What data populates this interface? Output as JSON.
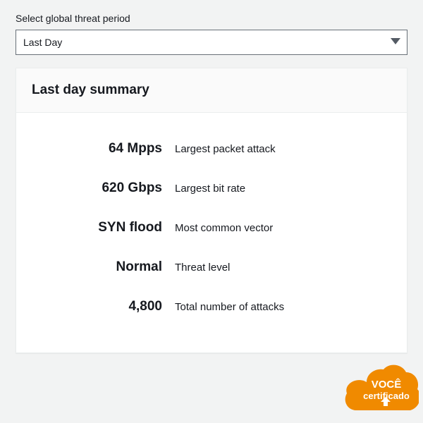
{
  "selector": {
    "label": "Select global threat period",
    "value": "Last Day",
    "caret_color": "#545b64"
  },
  "card": {
    "title": "Last day summary",
    "metrics": [
      {
        "value": "64 Mpps",
        "label": "Largest packet attack"
      },
      {
        "value": "620 Gbps",
        "label": "Largest bit rate"
      },
      {
        "value": "SYN flood",
        "label": "Most common vector"
      },
      {
        "value": "Normal",
        "label": "Threat level"
      },
      {
        "value": "4,800",
        "label": "Total number of attacks"
      }
    ]
  },
  "badge": {
    "line1": "VOCÊ",
    "line2": "certificado",
    "color": "#f08a00",
    "text_color": "#ffffff"
  }
}
